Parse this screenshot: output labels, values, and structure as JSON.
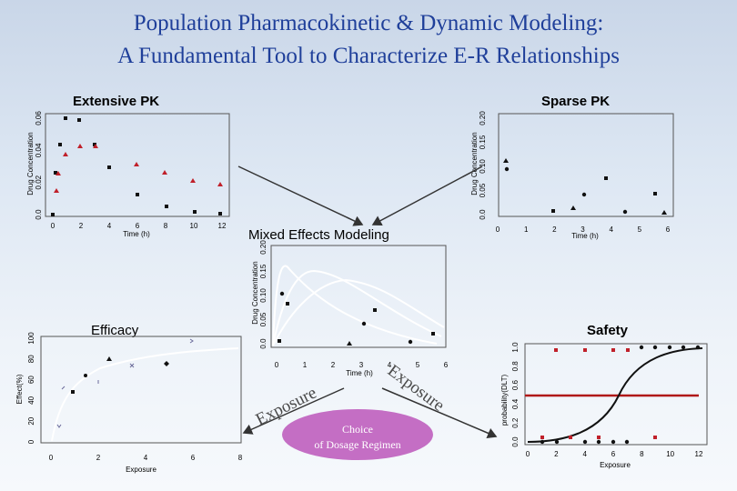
{
  "title": {
    "line1": "Population Pharmacokinetic & Dynamic Modeling:",
    "line2": "A Fundamental Tool to Characterize E-R Relationships"
  },
  "labels": {
    "extensive_pk": "Extensive PK",
    "sparse_pk": "Sparse PK",
    "mixed_effects": "Mixed Effects Modeling",
    "efficacy": "Efficacy",
    "safety": "Safety",
    "exposure_left": "Exposure",
    "exposure_right": "Exposure",
    "choice_line1": "Choice",
    "choice_line2": "of Dosage Regimen"
  },
  "chart_data": [
    {
      "id": "extensive-pk",
      "type": "scatter",
      "xlabel": "Time (h)",
      "ylabel": "Drug Concentration",
      "x_ticks": [
        "0",
        "2",
        "4",
        "6",
        "8",
        "10",
        "12"
      ],
      "y_ticks": [
        "0.0",
        "0.02",
        "0.04",
        "0.06"
      ],
      "xlim": [
        0,
        12
      ],
      "ylim": [
        0,
        0.06
      ]
    },
    {
      "id": "sparse-pk",
      "type": "scatter",
      "xlabel": "Time (h)",
      "ylabel": "Drug Concentration",
      "x_ticks": [
        "0",
        "1",
        "2",
        "3",
        "4",
        "5",
        "6"
      ],
      "y_ticks": [
        "0.0",
        "0.05",
        "0.10",
        "0.15",
        "0.20"
      ],
      "xlim": [
        0,
        6
      ],
      "ylim": [
        0,
        0.2
      ]
    },
    {
      "id": "mixed-effects",
      "type": "line",
      "xlabel": "Time (h)",
      "ylabel": "Drug Concentration",
      "x_ticks": [
        "0",
        "1",
        "2",
        "3",
        "4",
        "5",
        "6"
      ],
      "y_ticks": [
        "0.0",
        "0.05",
        "0.10",
        "0.15",
        "0.20"
      ],
      "xlim": [
        0,
        6
      ],
      "ylim": [
        0,
        0.2
      ]
    },
    {
      "id": "efficacy",
      "type": "scatter",
      "xlabel": "Exposure",
      "ylabel": "Effect(%)",
      "x_ticks": [
        "0",
        "2",
        "4",
        "6",
        "8"
      ],
      "y_ticks": [
        "0",
        "20",
        "40",
        "60",
        "80",
        "100"
      ],
      "xlim": [
        0,
        8
      ],
      "ylim": [
        0,
        100
      ]
    },
    {
      "id": "safety",
      "type": "scatter",
      "xlabel": "Exposure",
      "ylabel": "probability(DLT)",
      "x_ticks": [
        "0",
        "2",
        "4",
        "6",
        "8",
        "10",
        "12"
      ],
      "y_ticks": [
        "0.0",
        "0.2",
        "0.4",
        "0.6",
        "0.8",
        "1.0"
      ],
      "xlim": [
        0,
        12
      ],
      "ylim": [
        0,
        1
      ]
    }
  ]
}
